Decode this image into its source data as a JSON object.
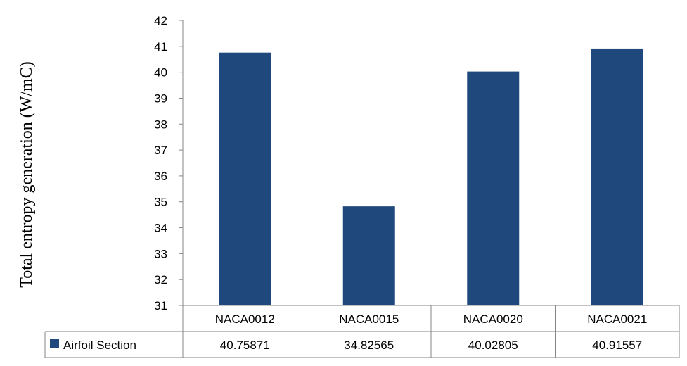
{
  "chart_data": {
    "type": "bar",
    "title": "",
    "xlabel": "",
    "ylabel": "Total entropy  generation (W/mC)",
    "ylim": [
      31,
      42
    ],
    "yticks": [
      31,
      32,
      33,
      34,
      35,
      36,
      37,
      38,
      39,
      40,
      41,
      42
    ],
    "categories": [
      "NACA0012",
      "NACA0015",
      "NACA0020",
      "NACA0021"
    ],
    "series": [
      {
        "name": "Airfoil Section",
        "values": [
          40.75871,
          34.82565,
          40.02805,
          40.91557
        ],
        "value_labels": [
          "40.75871",
          "34.82565",
          "40.02805",
          "40.91557"
        ],
        "color": "#1f497d"
      }
    ],
    "legend": "data-table",
    "grid": false
  }
}
